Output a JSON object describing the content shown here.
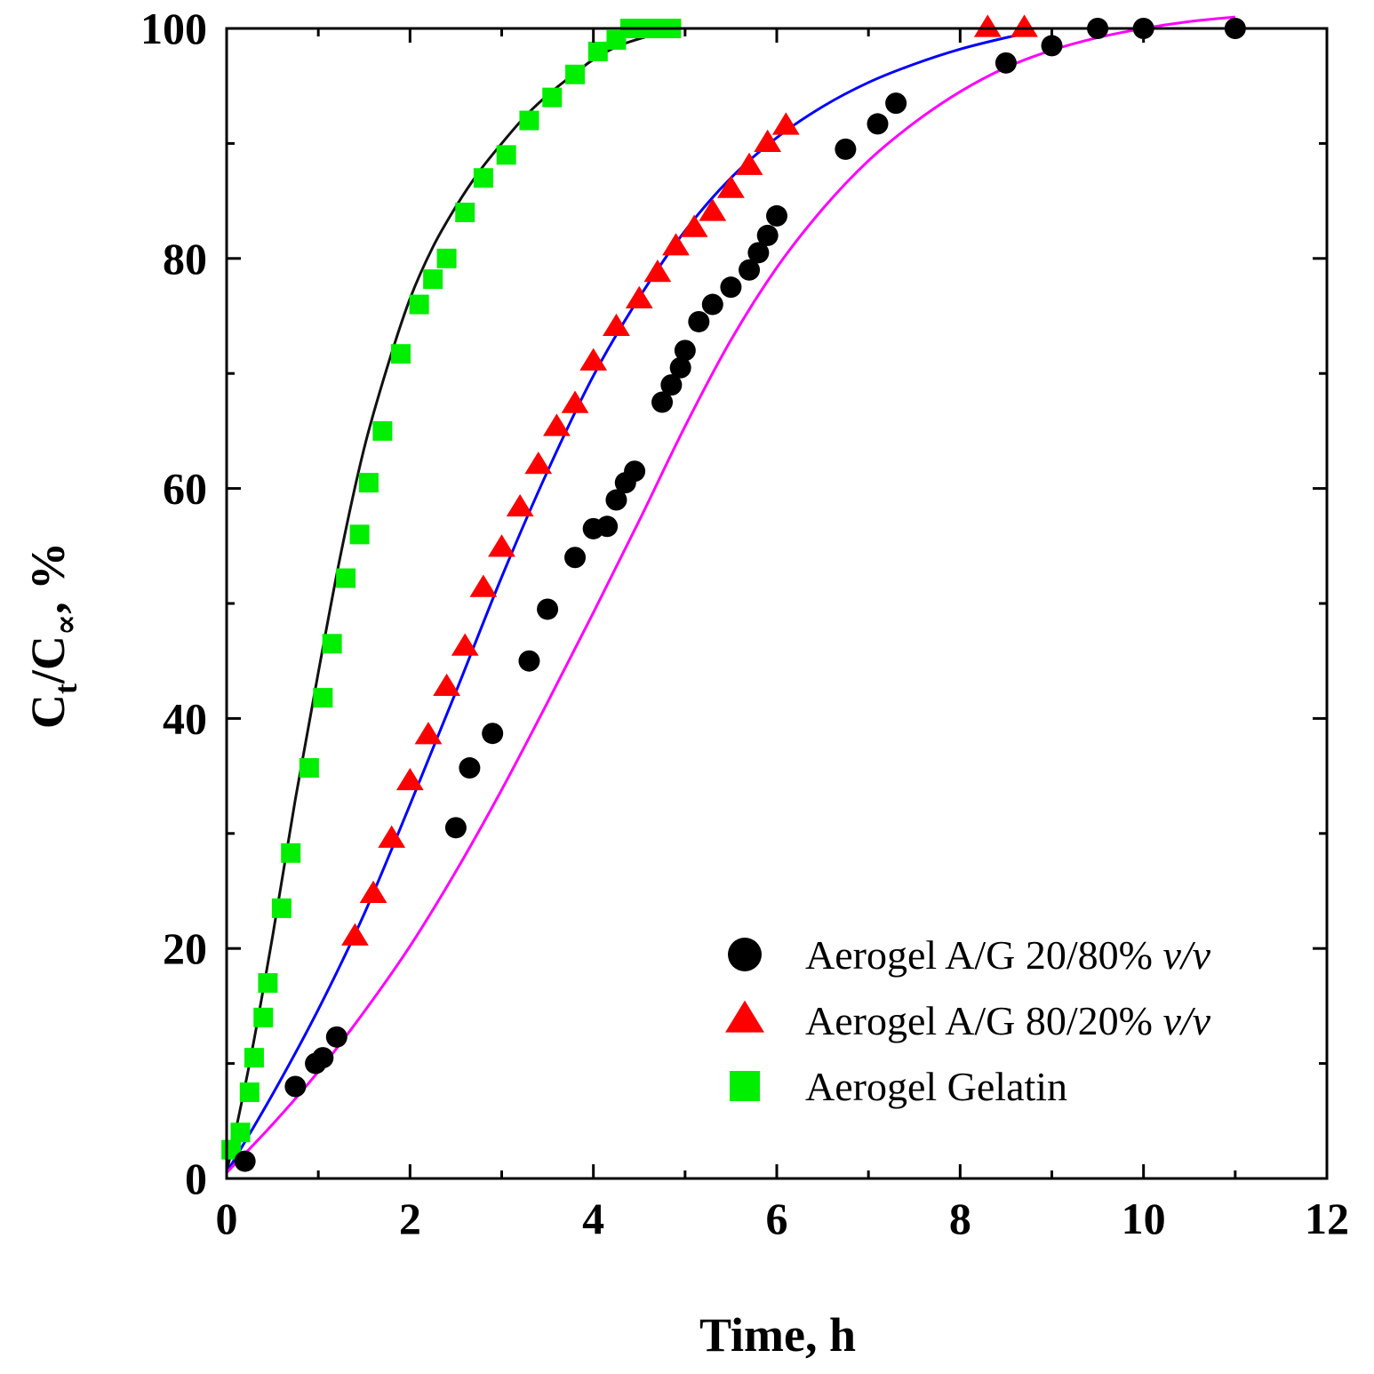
{
  "chart_data": {
    "type": "scatter",
    "title": "",
    "xlabel": "Time, h",
    "ylabel_parts": {
      "c1": "C",
      "sub1": "t",
      "slash": "/",
      "c2": "C",
      "sub2": "∝",
      "tail": ", %"
    },
    "xlim": [
      0,
      12
    ],
    "ylim": [
      0,
      100
    ],
    "x_major_ticks": [
      0,
      2,
      4,
      6,
      8,
      10,
      12
    ],
    "y_major_ticks": [
      0,
      20,
      40,
      60,
      80,
      100
    ],
    "x_tick_labels": [
      "0",
      "2",
      "4",
      "6",
      "8",
      "10",
      "12"
    ],
    "y_tick_labels": [
      "0",
      "20",
      "40",
      "60",
      "80",
      "100"
    ],
    "legend_position": "bottom-right",
    "series": [
      {
        "name": "Aerogel A/G 20/80% ",
        "name_italic": "v/v",
        "marker": "circle",
        "color": "#000000",
        "fit_color": "#ff00ff",
        "x": [
          0.2,
          0.75,
          0.97,
          1.05,
          1.2,
          2.5,
          2.65,
          2.9,
          3.3,
          3.5,
          3.8,
          4.0,
          4.15,
          4.25,
          4.35,
          4.45,
          4.75,
          4.85,
          4.95,
          5.0,
          5.15,
          5.3,
          5.5,
          5.7,
          5.8,
          5.9,
          6.0,
          6.75,
          7.1,
          7.3,
          8.5,
          9.0,
          9.5,
          10.0,
          11.0
        ],
        "y": [
          1.5,
          8,
          10,
          10.5,
          12.3,
          30.5,
          35.7,
          38.7,
          45,
          49.5,
          54,
          56.5,
          56.7,
          59,
          60.5,
          61.5,
          67.5,
          69,
          70.5,
          72,
          74.5,
          76,
          77.5,
          79,
          80.5,
          82,
          83.7,
          89.5,
          91.7,
          93.5,
          97,
          98.5,
          100,
          100,
          100
        ],
        "fit_x": [
          0,
          0.5,
          1,
          1.5,
          2,
          2.5,
          3,
          3.5,
          4,
          4.5,
          5,
          5.5,
          6,
          6.5,
          7,
          7.5,
          8,
          8.5,
          9,
          9.5,
          10,
          10.5,
          11
        ],
        "fit_y": [
          0.5,
          4.7,
          9.3,
          14.5,
          20.2,
          26.7,
          33.8,
          41.4,
          49.2,
          57.2,
          65.4,
          72.9,
          79.2,
          84.3,
          88.5,
          91.8,
          94.5,
          96.6,
          98.1,
          99.2,
          100,
          100.6,
          101
        ]
      },
      {
        "name": "Aerogel A/G 80/20% ",
        "name_italic": "v/v",
        "marker": "triangle",
        "color": "#ff0000",
        "fit_color": "#0000ff",
        "x": [
          1.4,
          1.6,
          1.8,
          2.0,
          2.2,
          2.4,
          2.6,
          2.8,
          3.0,
          3.2,
          3.4,
          3.6,
          3.8,
          4.0,
          4.25,
          4.5,
          4.7,
          4.9,
          5.1,
          5.3,
          5.5,
          5.7,
          5.9,
          6.1,
          8.3,
          8.7
        ],
        "y": [
          21,
          24.7,
          29.5,
          34.5,
          38.5,
          42.7,
          46.2,
          51.3,
          54.8,
          58.3,
          62,
          65.3,
          67.3,
          71,
          74,
          76.4,
          78.7,
          81,
          82.6,
          84,
          86,
          88,
          90,
          91.5,
          100,
          100
        ],
        "fit_x": [
          0,
          0.5,
          1,
          1.5,
          2,
          2.5,
          3,
          3.5,
          4,
          4.5,
          5,
          5.5,
          6,
          6.5,
          7,
          7.5,
          8,
          8.5,
          8.7
        ],
        "fit_y": [
          0.5,
          7.3,
          14.7,
          23,
          32.5,
          42.3,
          52.3,
          61.5,
          69.8,
          76.6,
          82.4,
          87,
          90.5,
          93.2,
          95.3,
          96.9,
          98.2,
          99.2,
          99.5
        ]
      },
      {
        "name": "Aerogel Gelatin",
        "name_italic": "",
        "marker": "square",
        "color": "#00ee00",
        "fit_color": "#111111",
        "x": [
          0.05,
          0.15,
          0.25,
          0.3,
          0.4,
          0.45,
          0.6,
          0.7,
          0.9,
          1.05,
          1.15,
          1.3,
          1.45,
          1.55,
          1.7,
          1.9,
          2.1,
          2.25,
          2.4,
          2.6,
          2.8,
          3.05,
          3.3,
          3.55,
          3.8,
          4.05,
          4.25,
          4.4,
          4.5,
          4.6,
          4.75,
          4.85
        ],
        "y": [
          2.5,
          4,
          7.5,
          10.5,
          14,
          17,
          23.5,
          28.3,
          35.7,
          41.8,
          46.5,
          52.2,
          56,
          60.5,
          65,
          71.7,
          76,
          78.2,
          80,
          84,
          87,
          89,
          92,
          94,
          96,
          98,
          99,
          100,
          100,
          100,
          100,
          100
        ],
        "fit_x": [
          0,
          0.25,
          0.5,
          0.75,
          1,
          1.25,
          1.5,
          1.75,
          2,
          2.25,
          2.5,
          2.75,
          3,
          3.25,
          3.5,
          3.75,
          4,
          4.25,
          4.5,
          4.8
        ],
        "fit_y": [
          0.5,
          10,
          21,
          33,
          44,
          54.5,
          63.5,
          70.5,
          76.5,
          81,
          84.5,
          87.5,
          90,
          92.3,
          94.2,
          95.8,
          97.3,
          98.4,
          99.1,
          99.7
        ]
      }
    ]
  }
}
